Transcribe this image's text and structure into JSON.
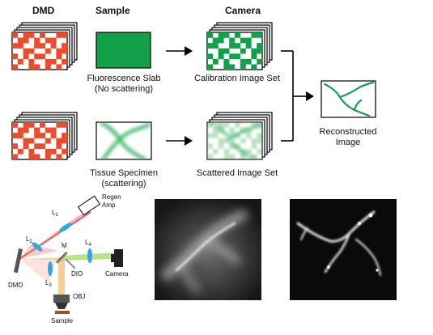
{
  "headers": {
    "dmd": "DMD",
    "sample": "Sample",
    "camera": "Camera"
  },
  "captions": {
    "fluorescence_slab": "Fluorescence Slab",
    "no_scattering": "(No scattering)",
    "calibration_set": "Calibration Image Set",
    "tissue_specimen": "Tissue Specimen",
    "scattering": "(scattering)",
    "scattered_set": "Scattered Image Set",
    "reconstructed_line1": "Reconstructed",
    "reconstructed_line2": "Image"
  },
  "optics": {
    "regen": "Regen",
    "amp": "Amp",
    "l1": "L",
    "l1_sub": "1",
    "l2": "L",
    "l2_sub": "2",
    "l3": "L",
    "l3_sub": "3",
    "l4": "L",
    "l4_sub": "4",
    "m": "M",
    "dio": "DIO",
    "camera": "Camera",
    "dmd": "DMD",
    "obj": "OBJ",
    "sample": "Sample"
  },
  "colors": {
    "dmd_pattern": "#ee4b2b",
    "fluorescence": "#12a04a",
    "reconstruction": "#1b9a4a",
    "beam_red": "#f08080",
    "beam_green": "#b7e07a",
    "lens": "#2ea8e0",
    "sample_stage": "#a0522d"
  }
}
